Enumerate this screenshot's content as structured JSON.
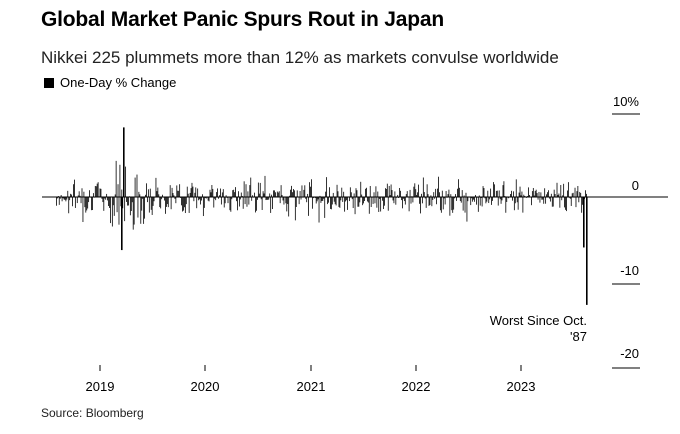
{
  "title": "Global Market Panic Spurs Rout in Japan",
  "subtitle": "Nikkei 225 plummets more than 12% as markets convulse worldwide",
  "legend_label": "One-Day % Change",
  "source": "Source: Bloomberg",
  "annotation": [
    "Worst Since Oct.",
    "'87"
  ],
  "colors": {
    "bars": "#000000",
    "axis": "#000000",
    "text": "#000000"
  },
  "chart_data": {
    "type": "bar",
    "title": "Global Market Panic Spurs Rout in Japan",
    "subtitle": "Nikkei 225 plummets more than 12% as markets convulse worldwide",
    "series_name": "One-Day % Change",
    "xlabel": "",
    "ylabel": "",
    "x_tick_labels": [
      "2019",
      "2020",
      "2021",
      "2022",
      "2023"
    ],
    "y_tick_labels": [
      "10%",
      "0",
      "-10",
      "-20"
    ],
    "y_ticks": [
      10,
      0,
      -10,
      -20
    ],
    "xlim": [
      "2018-07",
      "2024-08"
    ],
    "ylim": [
      -20,
      10
    ],
    "grid": false,
    "legend_position": "top-left",
    "notable_points": [
      {
        "date": "2020-03",
        "value": 8.0
      },
      {
        "date": "2020-03",
        "value": -6.1
      },
      {
        "date": "2024-08-02",
        "value": -5.8
      },
      {
        "date": "2024-08-05",
        "value": -12.4
      }
    ],
    "annotation": {
      "date": "2024-08-05",
      "value": -12.4,
      "text": "Worst Since Oct. '87"
    }
  }
}
